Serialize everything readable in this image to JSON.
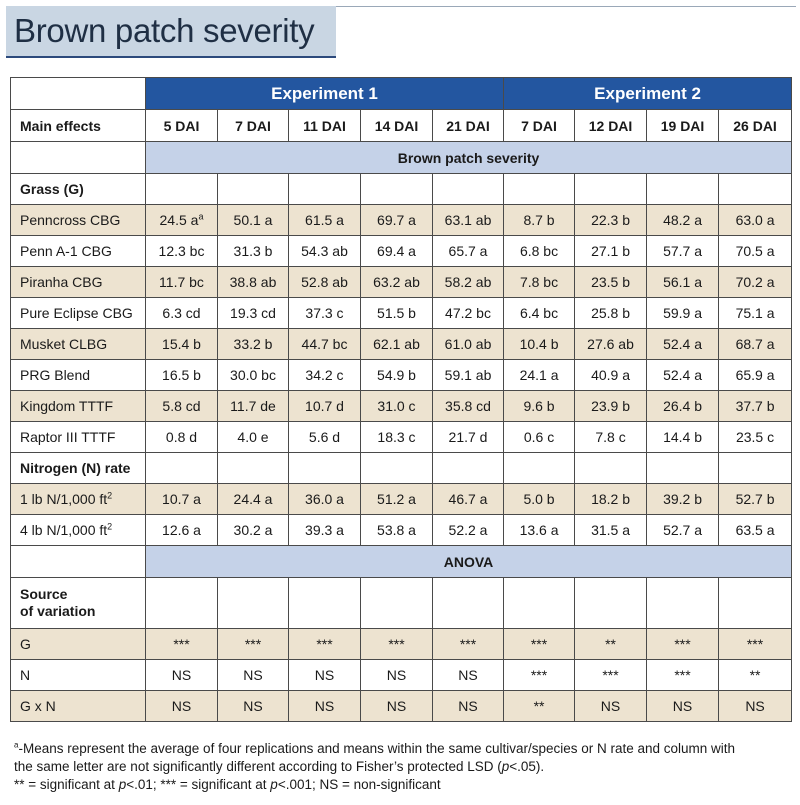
{
  "title": "Brown patch severity",
  "table": {
    "experiment1": "Experiment 1",
    "experiment2": "Experiment 2",
    "main_effects": "Main effects",
    "columns": [
      "5 DAI",
      "7 DAI",
      "11 DAI",
      "14 DAI",
      "21 DAI",
      "7 DAI",
      "12 DAI",
      "19 DAI",
      "26 DAI"
    ],
    "band_severity": "Brown patch severity",
    "band_anova": "ANOVA",
    "grass_section": "Grass (G)",
    "nitrogen_section": "Nitrogen (N) rate",
    "source_line1": "Source",
    "source_line2": "of variation",
    "grass_rows": [
      {
        "label": "Penncross CBG",
        "v1": "24.5 a",
        "v1_sup": "a",
        "values": [
          "50.1 a",
          "61.5 a",
          "69.7 a",
          "63.1 ab",
          "8.7 b",
          "22.3 b",
          "48.2 a",
          "63.0 a"
        ]
      },
      {
        "label": "Penn A-1 CBG",
        "values": [
          "12.3 bc",
          "31.3 b",
          "54.3 ab",
          "69.4 a",
          "65.7 a",
          "6.8 bc",
          "27.1 b",
          "57.7 a",
          "70.5 a"
        ]
      },
      {
        "label": "Piranha CBG",
        "values": [
          "11.7 bc",
          "38.8 ab",
          "52.8 ab",
          "63.2 ab",
          "58.2 ab",
          "7.8 bc",
          "23.5 b",
          "56.1 a",
          "70.2 a"
        ]
      },
      {
        "label": "Pure Eclipse CBG",
        "values": [
          "6.3 cd",
          "19.3 cd",
          "37.3 c",
          "51.5 b",
          "47.2 bc",
          "6.4 bc",
          "25.8 b",
          "59.9 a",
          "75.1 a"
        ]
      },
      {
        "label": "Musket CLBG",
        "values": [
          "15.4 b",
          "33.2 b",
          "44.7 bc",
          "62.1 ab",
          "61.0 ab",
          "10.4 b",
          "27.6 ab",
          "52.4 a",
          "68.7 a"
        ]
      },
      {
        "label": "PRG Blend",
        "values": [
          "16.5 b",
          "30.0 bc",
          "34.2 c",
          "54.9 b",
          "59.1 ab",
          "24.1 a",
          "40.9 a",
          "52.4 a",
          "65.9 a"
        ]
      },
      {
        "label": "Kingdom TTTF",
        "values": [
          "5.8 cd",
          "11.7 de",
          "10.7 d",
          "31.0 c",
          "35.8 cd",
          "9.6 b",
          "23.9 b",
          "26.4 b",
          "37.7 b"
        ]
      },
      {
        "label": "Raptor III TTTF",
        "values": [
          "0.8 d",
          "4.0 e",
          "5.6 d",
          "18.3 c",
          "21.7 d",
          "0.6 c",
          "7.8 c",
          "14.4 b",
          "23.5 c"
        ]
      }
    ],
    "nitrogen_rows": [
      {
        "label_pre": "1 lb N/1,000 ft",
        "label_sup": "2",
        "values": [
          "10.7 a",
          "24.4 a",
          "36.0 a",
          "51.2 a",
          "46.7 a",
          "5.0 b",
          "18.2 b",
          "39.2 b",
          "52.7 b"
        ]
      },
      {
        "label_pre": "4 lb N/1,000 ft",
        "label_sup": "2",
        "values": [
          "12.6 a",
          "30.2 a",
          "39.3 a",
          "53.8 a",
          "52.2 a",
          "13.6 a",
          "31.5 a",
          "52.7 a",
          "63.5 a"
        ]
      }
    ],
    "anova_rows": [
      {
        "label": "G",
        "values": [
          "***",
          "***",
          "***",
          "***",
          "***",
          "***",
          "**",
          "***",
          "***"
        ]
      },
      {
        "label": "N",
        "values": [
          "NS",
          "NS",
          "NS",
          "NS",
          "NS",
          "***",
          "***",
          "***",
          "**"
        ]
      },
      {
        "label": "G x N",
        "values": [
          "NS",
          "NS",
          "NS",
          "NS",
          "NS",
          "**",
          "NS",
          "NS",
          "NS"
        ]
      }
    ]
  },
  "footnote": {
    "marker": "a",
    "line1": "-Means represent the average of four replications and means within the same cultivar/species or N rate and column with",
    "line2_pre": "the same letter are not significantly different according to Fisher’s protected LSD (",
    "line2_p": "p",
    "line2_post": "<.05).",
    "line3_a": "** = significant at ",
    "line3_p1": "p",
    "line3_b": "<.01; *** = significant at ",
    "line3_p2": "p",
    "line3_c": "<.001; NS = non-significant"
  }
}
